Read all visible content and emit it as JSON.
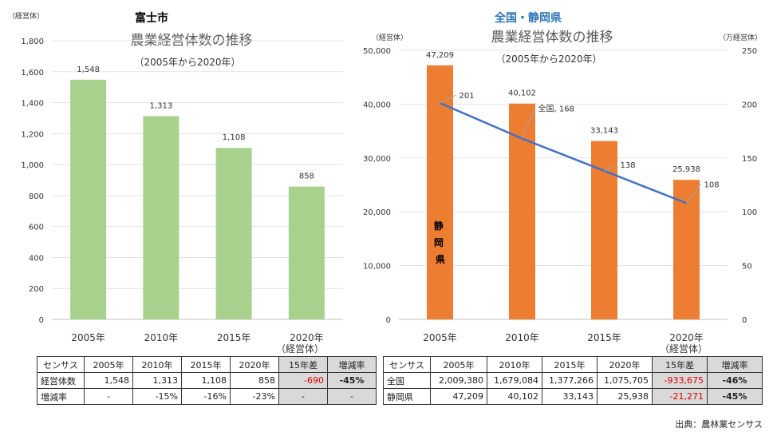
{
  "left": {
    "region_title": "富士市",
    "chart_data": {
      "type": "bar",
      "title": "農業経営体数の推移",
      "subtitle": "（2005年から2020年）",
      "ylabel": "（経営体）",
      "xunit": "（経営体）",
      "ylim": [
        0,
        1800
      ],
      "yticks": [
        "0",
        "200",
        "400",
        "600",
        "800",
        "1,000",
        "1,200",
        "1,400",
        "1,600",
        "1,800"
      ],
      "categories": [
        "2005年",
        "2010年",
        "2015年",
        "2020年"
      ],
      "values": [
        1548,
        1313,
        1108,
        858
      ],
      "value_labels": [
        "1,548",
        "1,313",
        "1,108",
        "858"
      ],
      "bar_color": "#a9d18e",
      "grid": true
    },
    "table": {
      "header": [
        "センサス",
        "2005年",
        "2010年",
        "2015年",
        "2020年",
        "15年差",
        "増減率"
      ],
      "rows": [
        [
          "経営体数",
          "1,548",
          "1,313",
          "1,108",
          "858",
          "-690",
          "-45%"
        ],
        [
          "増減率",
          "-",
          "-15%",
          "-16%",
          "-23%",
          "-",
          "-"
        ]
      ]
    }
  },
  "right": {
    "region_title": "全国・静岡県",
    "chart_data": {
      "type": "bar+line",
      "title": "農業経営体数の推移",
      "subtitle": "（2005年から2020年）",
      "ylabel": "（経営体）",
      "y2label": "（万経営体）",
      "xunit": "（経営体）",
      "ylim": [
        0,
        50000
      ],
      "yticks": [
        "0",
        "10,000",
        "20,000",
        "30,000",
        "40,000",
        "50,000"
      ],
      "y2lim": [
        0,
        250
      ],
      "y2ticks": [
        "0",
        "50",
        "100",
        "150",
        "200",
        "250"
      ],
      "categories": [
        "2005年",
        "2010年",
        "2015年",
        "2020年"
      ],
      "series": [
        {
          "name": "静岡県",
          "type": "bar",
          "axis": "left",
          "values": [
            47209,
            40102,
            33143,
            25938
          ],
          "value_labels": [
            "47,209",
            "40,102",
            "33,143",
            "25,938"
          ],
          "color": "#ed7d31"
        },
        {
          "name": "全国",
          "type": "line",
          "axis": "right",
          "values": [
            201,
            168,
            138,
            108
          ],
          "value_labels": [
            "201",
            "全国, 168",
            "138",
            "108"
          ],
          "color": "#4472c4"
        }
      ],
      "grid": true
    },
    "table": {
      "header": [
        "センサス",
        "2005年",
        "2010年",
        "2015年",
        "2020年",
        "15年差",
        "増減率"
      ],
      "rows": [
        [
          "全国",
          "2,009,380",
          "1,679,084",
          "1,377,266",
          "1,075,705",
          "-933,675",
          "-46%"
        ],
        [
          "静岡県",
          "47,209",
          "40,102",
          "33,143",
          "25,938",
          "-21,271",
          "-45%"
        ]
      ]
    }
  },
  "source": "出典：農林業センサス"
}
